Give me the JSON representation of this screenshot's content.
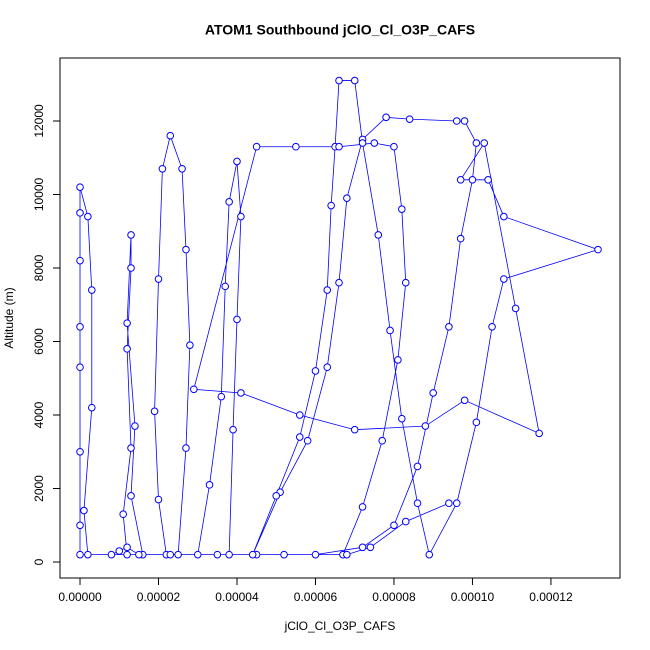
{
  "chart_data": {
    "type": "line",
    "title": "ATOM1 Southbound jClO_Cl_O3P_CAFS",
    "xlabel": "jClO_Cl_O3P_CAFS",
    "ylabel": "Altitude (m)",
    "color": "#0000ff",
    "markers": true,
    "grid": false,
    "xlim": [
      -5.1e-06,
      0.0001376
    ],
    "ylim": [
      -435,
      13714
    ],
    "xticks": [
      {
        "value": 0,
        "label": "0.00000"
      },
      {
        "value": 2e-05,
        "label": "0.00002"
      },
      {
        "value": 4e-05,
        "label": "0.00004"
      },
      {
        "value": 6e-05,
        "label": "0.00006"
      },
      {
        "value": 8e-05,
        "label": "0.00008"
      },
      {
        "value": 0.0001,
        "label": "0.00010"
      },
      {
        "value": 0.00012,
        "label": "0.00012"
      }
    ],
    "yticks": [
      0,
      2000,
      4000,
      6000,
      8000,
      10000,
      12000
    ],
    "x": [
      0,
      0,
      0,
      0,
      0,
      0,
      0,
      0,
      2e-06,
      3e-06,
      3e-06,
      1e-06,
      2e-06,
      1.2e-05,
      1.1e-05,
      1.3e-05,
      1.2e-05,
      1.3e-05,
      1.3e-05,
      1.2e-05,
      1.4e-05,
      1.3e-05,
      1.6e-05,
      2.2e-05,
      2e-05,
      1.9e-05,
      2e-05,
      2.1e-05,
      2.3e-05,
      2.6e-05,
      2.7e-05,
      2.8e-05,
      2.7e-05,
      2.5e-05,
      3e-05,
      3.3e-05,
      3.6e-05,
      3.7e-05,
      3.8e-05,
      4e-05,
      4.1e-05,
      4e-05,
      3.9e-05,
      3.8e-05,
      4.5e-05,
      6e-05,
      7.2e-05,
      8e-05,
      8.6e-05,
      9e-05,
      9.4e-05,
      9.7e-05,
      0.0001,
      0.000101,
      9.8e-05,
      9.6e-05,
      8.4e-05,
      7.8e-05,
      7.2e-05,
      6.8e-05,
      6.6e-05,
      6.3e-05,
      5.8e-05,
      5.1e-05,
      4.4e-05,
      5e-05,
      5.6e-05,
      6e-05,
      6.3e-05,
      6.4e-05,
      6.5e-05,
      6.6e-05,
      7e-05,
      7.2e-05,
      7.6e-05,
      7.9e-05,
      8.2e-05,
      8.6e-05,
      8.9e-05,
      9.6e-05,
      0.000101,
      0.000105,
      0.000108,
      0.000132,
      0.000108,
      0.000104,
      9.7e-05,
      0.000103,
      0.000111,
      0.000117,
      9.8e-05,
      8.8e-05,
      7e-05,
      5.6e-05,
      4.1e-05,
      2.9e-05,
      4.5e-05,
      5.5e-05,
      6.6e-05,
      7.5e-05,
      8e-05,
      8.2e-05,
      8.3e-05,
      8.1e-05,
      7.7e-05,
      7.2e-05,
      6.7e-05,
      8e-06,
      1e-05,
      1.2e-05,
      1.5e-05,
      2.3e-05,
      3.5e-05,
      5.2e-05,
      6.8e-05,
      7.4e-05,
      8.3e-05,
      9.4e-05
    ],
    "y": [
      200,
      1000,
      3000,
      5300,
      6400,
      8200,
      9500,
      10200,
      9400,
      7400,
      4200,
      1400,
      200,
      200,
      1300,
      3100,
      5800,
      8000,
      8900,
      6500,
      3700,
      1800,
      200,
      200,
      1700,
      4100,
      7700,
      10700,
      11600,
      10700,
      8500,
      5900,
      3100,
      200,
      200,
      2100,
      4500,
      7500,
      9800,
      10900,
      9400,
      6600,
      3600,
      200,
      200,
      200,
      400,
      1000,
      2600,
      4600,
      6400,
      8800,
      10400,
      11400,
      12000,
      12000,
      12050,
      12100,
      11500,
      9900,
      7600,
      5300,
      3300,
      1900,
      200,
      1800,
      3400,
      5200,
      7400,
      9700,
      11300,
      13100,
      13100,
      11400,
      8900,
      6300,
      3900,
      1600,
      200,
      1600,
      3800,
      6400,
      7700,
      8500,
      9400,
      10400,
      10400,
      11400,
      6900,
      3500,
      4400,
      3700,
      3600,
      4000,
      4600,
      4700,
      11300,
      11300,
      11300,
      11400,
      11300,
      9600,
      7600,
      5500,
      3300,
      1500,
      200,
      200,
      300,
      400,
      200,
      200,
      200,
      200,
      200,
      400,
      1100,
      1600
    ]
  }
}
